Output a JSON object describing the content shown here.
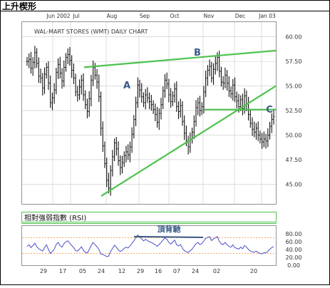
{
  "header": {
    "title": "上升楔形"
  },
  "colors": {
    "frame": "#000000",
    "accent_green": "#4ec24e",
    "grid": "#c8c8c8",
    "candles": "#111111",
    "annotation": "#3a5a88",
    "rsi_line": "#4a50c8",
    "rsi_band": "#f08a30"
  },
  "chart_data": [
    {
      "type": "bar",
      "subtype": "ohlc-price",
      "title": "WAL-MART STORES (WMT) DAILY CHART",
      "month_labels": [
        "Jun 2002",
        "Jul",
        "Aug",
        "Sep",
        "Oct",
        "Nov",
        "Dec",
        "Jan 03"
      ],
      "day_labels": [
        "29",
        "17",
        "05",
        "24",
        "12",
        "29",
        "16",
        "07",
        "24",
        "02",
        "20"
      ],
      "y_ticks": [
        "60.00",
        "57.50",
        "55.00",
        "52.50",
        "50.00",
        "47.50",
        "45.00"
      ],
      "ylim": [
        43.0,
        61.5
      ],
      "grid": true,
      "close_series": [
        57.5,
        57.7,
        56.8,
        57.4,
        58.4,
        57.3,
        56.0,
        55.8,
        54.8,
        56.2,
        56.9,
        55.3,
        53.3,
        53.8,
        54.6,
        56.4,
        57.2,
        56.3,
        55.5,
        56.9,
        57.9,
        58.2,
        57.6,
        56.6,
        55.8,
        54.4,
        54.1,
        54.9,
        55.6,
        54.1,
        53.1,
        52.4,
        53.7,
        55.6,
        56.9,
        56.1,
        55.4,
        53.9,
        50.7,
        48.9,
        47.1,
        45.4,
        44.6,
        46.4,
        47.8,
        49.2,
        48.6,
        47.4,
        46.7,
        47.2,
        47.9,
        48.3,
        48.0,
        48.8,
        50.1,
        51.6,
        53.3,
        55.1,
        54.6,
        53.9,
        53.3,
        54.1,
        53.8,
        53.4,
        53.1,
        52.6,
        52.1,
        51.3,
        52.2,
        53.1,
        54.5,
        55.6,
        55.2,
        54.1,
        53.4,
        54.0,
        54.7,
        52.9,
        52.4,
        53.0,
        51.4,
        50.2,
        49.4,
        48.8,
        49.6,
        50.3,
        51.4,
        52.8,
        53.3,
        52.5,
        52.9,
        54.4,
        55.8,
        56.6,
        57.0,
        55.8,
        56.7,
        57.3,
        57.9,
        56.5,
        55.4,
        55.3,
        56.1,
        55.3,
        54.5,
        54.2,
        55.1,
        53.9,
        53.5,
        52.9,
        53.6,
        52.7,
        54.0,
        53.2,
        52.1,
        51.2,
        50.6,
        50.3,
        50.7,
        50.0,
        49.6,
        49.3,
        49.6,
        49.4,
        50.0,
        50.9,
        51.6,
        51.9
      ],
      "trendlines": [
        {
          "from": [
            "05",
            56.9
          ],
          "to": [
            "Jan 03 end",
            58.6
          ],
          "label": ""
        },
        {
          "from": [
            "24",
            43.8
          ],
          "to": [
            "Jan 03 end",
            55.0
          ],
          "label": ""
        },
        {
          "from": [
            "Nov",
            52.6
          ],
          "to": [
            "Jan 03",
            52.6
          ],
          "label": ""
        }
      ],
      "annotations": [
        {
          "text": "A",
          "near": [
            "12",
            55.5
          ]
        },
        {
          "text": "B",
          "near": [
            "24",
            58.5
          ]
        },
        {
          "text": "C",
          "near": [
            "Jan 03",
            53.5
          ]
        }
      ]
    },
    {
      "type": "line",
      "title": "相對強弱指數 (RSI)",
      "y_ticks": [
        "80.00",
        "60.00",
        "40.00",
        "20.00",
        "0.00"
      ],
      "ylim": [
        0,
        100
      ],
      "bands": [
        70,
        30
      ],
      "values": [
        48,
        52,
        45,
        50,
        56,
        47,
        42,
        39,
        36,
        45,
        52,
        40,
        30,
        35,
        41,
        53,
        58,
        50,
        46,
        55,
        60,
        62,
        56,
        50,
        45,
        37,
        36,
        41,
        47,
        38,
        33,
        31,
        40,
        50,
        58,
        52,
        47,
        40,
        29,
        27,
        25,
        22,
        23,
        35,
        43,
        51,
        46,
        39,
        35,
        38,
        43,
        46,
        44,
        49,
        56,
        62,
        70,
        77,
        72,
        67,
        62,
        66,
        63,
        60,
        58,
        55,
        52,
        48,
        53,
        58,
        64,
        70,
        66,
        58,
        54,
        59,
        64,
        52,
        49,
        53,
        43,
        37,
        34,
        32,
        37,
        41,
        48,
        55,
        58,
        53,
        55,
        62,
        68,
        71,
        73,
        63,
        67,
        70,
        73,
        61,
        54,
        53,
        58,
        52,
        48,
        46,
        52,
        45,
        43,
        41,
        46,
        42,
        50,
        46,
        40,
        36,
        34,
        33,
        36,
        32,
        30,
        29,
        32,
        31,
        35,
        41,
        45,
        47
      ],
      "annotation": {
        "text": "頂背馳",
        "span": [
          "Oct",
          "Nov"
        ]
      }
    }
  ]
}
